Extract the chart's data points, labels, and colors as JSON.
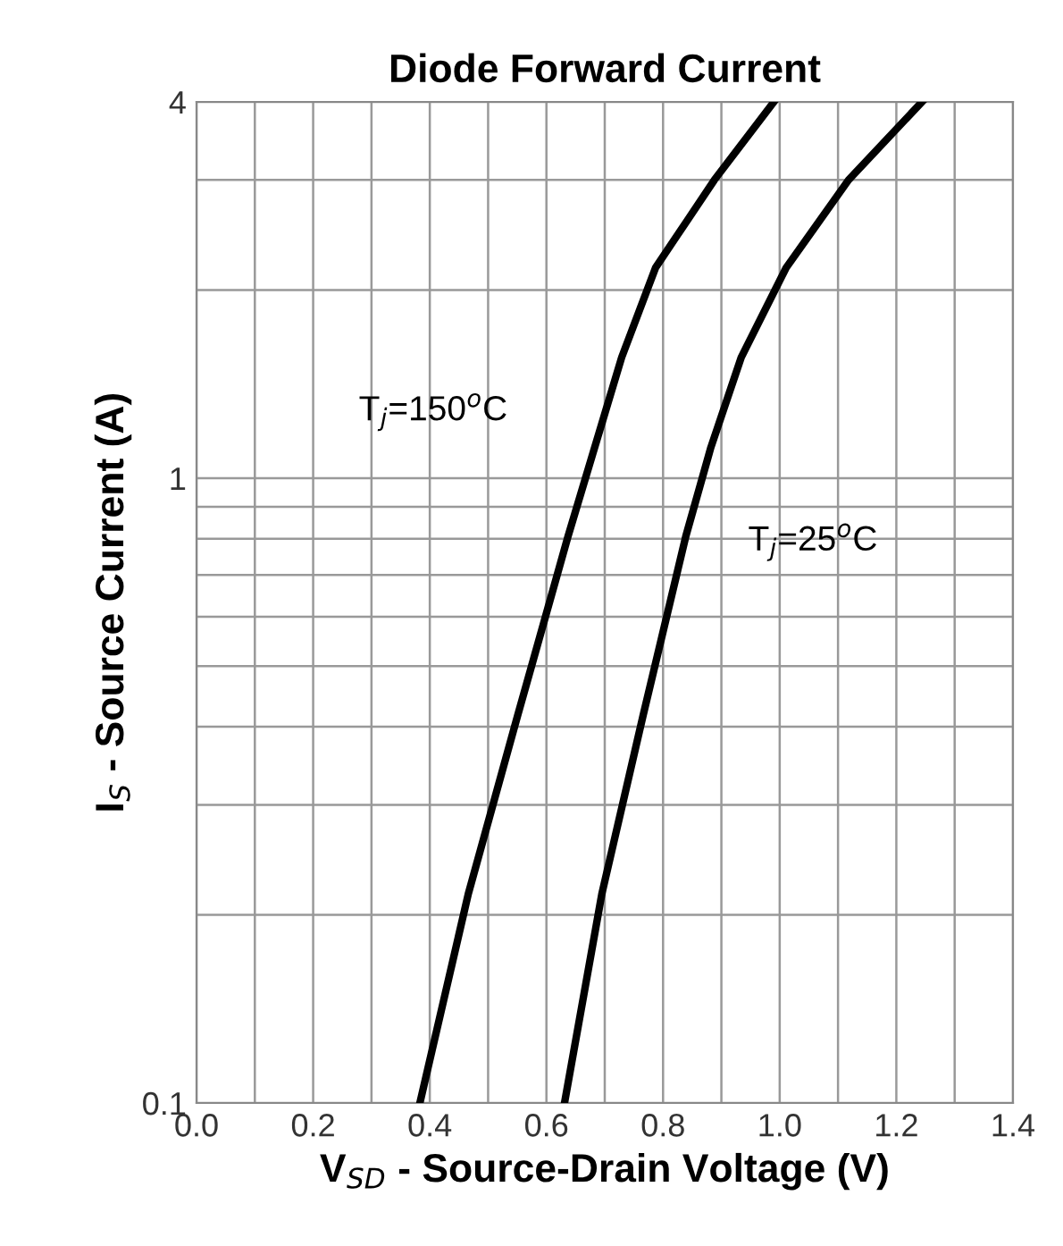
{
  "chart_data": {
    "type": "line",
    "title": "Diode Forward Current",
    "xlabel": "V$_{SD}$ - Source-Drain Voltage (V)",
    "ylabel": "I$_{S}$ - Source Current (A)",
    "series": [
      {
        "color": "#000000",
        "x": [
          0.383,
          0.466,
          0.551,
          0.637,
          0.729,
          0.787,
          0.888,
          0.99
        ],
        "values": [
          0.1,
          0.216,
          0.418,
          0.807,
          1.56,
          2.17,
          3.0,
          4
        ]
      },
      {
        "color": "#000000",
        "x": [
          0.631,
          0.695,
          0.766,
          0.839,
          0.882,
          0.934,
          1.011,
          1.118,
          1.244
        ],
        "values": [
          0.1,
          0.216,
          0.418,
          0.807,
          1.12,
          1.56,
          2.17,
          3.0,
          4
        ]
      }
    ],
    "annotations": [
      "T$_{j}$=150$^{o}$C",
      "T$_{j}$=25$^{o}$C"
    ],
    "log": "y",
    "xlim": [
      0,
      1.4
    ],
    "ylim": [
      0.1,
      4
    ],
    "xticks": [
      {
        "value": 0,
        "label": "0.0"
      },
      {
        "value": 0.1,
        "label": null
      },
      0.2,
      {
        "value": 0.3,
        "label": null
      },
      0.4,
      {
        "value": 0.5,
        "label": null
      },
      0.6,
      {
        "value": 0.7,
        "label": null
      },
      0.8,
      {
        "value": 0.9,
        "label": null
      },
      {
        "value": 1.0,
        "label": "1.0"
      },
      {
        "value": 1.1,
        "label": null
      },
      1.2,
      {
        "value": 1.3,
        "label": null
      },
      1.4
    ],
    "yticks": [
      0.1,
      {
        "value": 0.2,
        "label": null
      },
      {
        "value": 0.3,
        "label": null
      },
      {
        "value": 0.4,
        "label": null
      },
      {
        "value": 0.5,
        "label": null
      },
      {
        "value": 0.6,
        "label": null
      },
      {
        "value": 0.7,
        "label": null
      },
      {
        "value": 0.8,
        "label": null
      },
      {
        "value": 0.9,
        "label": null
      },
      1,
      {
        "value": 2,
        "label": null
      },
      {
        "value": 3,
        "label": null
      },
      4
    ],
    "grid": true,
    "line_style": "solid",
    "marker": "none",
    "legend": false
  }
}
